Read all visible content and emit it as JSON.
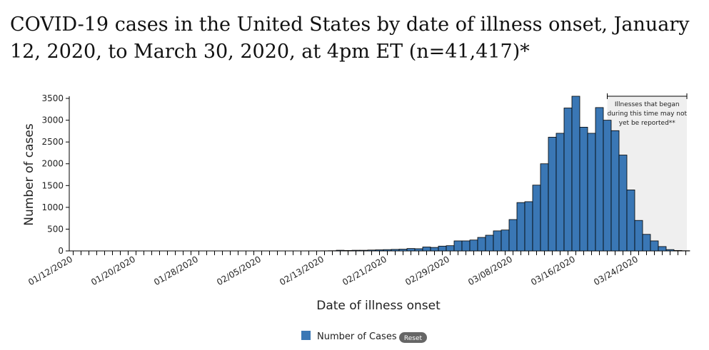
{
  "chart_data": {
    "type": "bar",
    "title": "COVID-19 cases in the United States by date of illness onset, January 12, 2020, to March 30, 2020, at 4pm ET (n=41,417)*",
    "x_label": "Date of illness onset",
    "y_label": "Number of cases",
    "annotation": [
      "Illnesses that began",
      "during this time may not",
      "yet be reported**"
    ],
    "reset_button": "Reset",
    "categories": [
      "01/12/2020",
      null,
      null,
      null,
      null,
      null,
      null,
      null,
      "01/20/2020",
      null,
      null,
      null,
      null,
      null,
      null,
      null,
      "01/28/2020",
      null,
      null,
      null,
      null,
      null,
      null,
      null,
      "02/05/2020",
      null,
      null,
      null,
      null,
      null,
      null,
      null,
      "02/13/2020",
      null,
      null,
      null,
      null,
      null,
      null,
      null,
      "02/21/2020",
      null,
      null,
      null,
      null,
      null,
      null,
      null,
      "02/29/2020",
      null,
      null,
      null,
      null,
      null,
      null,
      null,
      "03/08/2020",
      null,
      null,
      null,
      null,
      null,
      null,
      null,
      "03/16/2020",
      null,
      null,
      null,
      null,
      null,
      null,
      null,
      "03/24/2020",
      null,
      null,
      null,
      null,
      null,
      null
    ],
    "series": [
      {
        "name": "Number of Cases",
        "color": "#3a77b5",
        "values": [
          0,
          0,
          0,
          0,
          0,
          0,
          0,
          0,
          1,
          0,
          0,
          1,
          0,
          0,
          0,
          1,
          0,
          0,
          1,
          0,
          0,
          1,
          0,
          1,
          0,
          1,
          0,
          1,
          2,
          1,
          2,
          2,
          3,
          5,
          15,
          10,
          15,
          15,
          20,
          25,
          30,
          35,
          40,
          55,
          50,
          90,
          80,
          110,
          120,
          230,
          230,
          250,
          310,
          360,
          460,
          480,
          720,
          1110,
          1130,
          1510,
          2000,
          2610,
          2700,
          3280,
          3550,
          2840,
          2700,
          3290,
          3000,
          2760,
          2200,
          1400,
          700,
          380,
          230,
          100,
          30,
          10,
          5
        ]
      }
    ],
    "ylim": [
      0,
      3550
    ],
    "yticks": [
      0,
      500,
      1000,
      1500,
      2000,
      2500,
      3000,
      3500
    ]
  }
}
